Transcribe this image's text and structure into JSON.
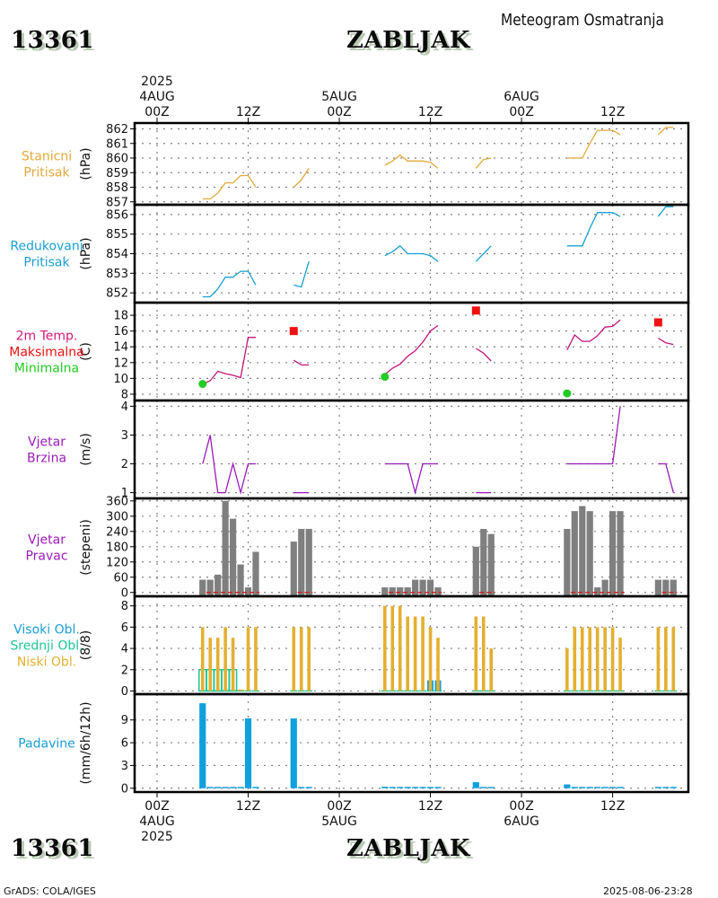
{
  "header": {
    "station_id": "13361",
    "station_name": "ZABLJAK",
    "title": "Meteogram Osmatranja"
  },
  "footer": {
    "station_id": "13361",
    "station_name": "ZABLJAK",
    "credit": "GrADS: COLA/IGES",
    "timestamp": "2025-08-06-23:28"
  },
  "time_axis": {
    "year": "2025",
    "ticks": [
      {
        "hour": 0,
        "time": "00Z",
        "day": "4AUG",
        "year": "2025"
      },
      {
        "hour": 12,
        "time": "12Z",
        "day": "",
        "year": ""
      },
      {
        "hour": 24,
        "time": "00Z",
        "day": "5AUG",
        "year": ""
      },
      {
        "hour": 36,
        "time": "12Z",
        "day": "",
        "year": ""
      },
      {
        "hour": 48,
        "time": "00Z",
        "day": "6AUG",
        "year": ""
      },
      {
        "hour": 60,
        "time": "12Z",
        "day": "",
        "year": ""
      }
    ],
    "range_hours": [
      -3,
      70
    ]
  },
  "colors": {
    "station_pressure": "#e3a93a",
    "reduced_pressure": "#1a9fd6",
    "temperature": "#c4157a",
    "tmax": "#ee1111",
    "tmin": "#22cc22",
    "wind_speed": "#9a1ab8",
    "wind_dir_bar": "#7f7f7f",
    "wind_dir_zero": "#dd1111",
    "cloud_high": "#1a9fd6",
    "cloud_mid": "#1fc49a",
    "cloud_low": "#e3b030",
    "precip": "#10a0e0",
    "label_station_pressure": "#e3a93a",
    "label_reduced_pressure": "#1a9fd6",
    "label_temp": "#d01a7a",
    "label_tmax": "#ee1111",
    "label_tmin": "#22cc22",
    "label_wind": "#9a1ab8",
    "label_precip": "#1a9fd6",
    "grid": "#808080"
  },
  "chart_data": [
    {
      "id": "station_pressure",
      "type": "line",
      "labels": [
        "Stanicni",
        "Pritisak"
      ],
      "ylabel": "(hPa)",
      "ylim": [
        856.8,
        862.4
      ],
      "yticks": [
        857,
        858,
        859,
        860,
        861,
        862
      ],
      "grid": true,
      "segments": [
        [
          [
            6,
            857.2
          ],
          [
            7,
            857.2
          ],
          [
            8,
            857.6
          ],
          [
            9,
            858.3
          ],
          [
            10,
            858.3
          ],
          [
            11,
            858.8
          ],
          [
            12,
            858.8
          ],
          [
            13,
            858.0
          ]
        ],
        [
          [
            18,
            858.0
          ],
          [
            19,
            858.5
          ],
          [
            20,
            859.3
          ]
        ],
        [
          [
            30,
            859.5
          ],
          [
            31,
            859.8
          ],
          [
            32,
            860.2
          ],
          [
            33,
            859.8
          ],
          [
            34,
            859.8
          ],
          [
            35,
            859.8
          ],
          [
            36,
            859.7
          ],
          [
            37,
            859.3
          ]
        ],
        [
          [
            42,
            859.3
          ],
          [
            43,
            859.9
          ],
          [
            44,
            860.0
          ]
        ],
        [
          [
            54,
            860.0
          ],
          [
            55,
            860.0
          ],
          [
            56,
            860.0
          ],
          [
            57,
            861.0
          ],
          [
            58,
            861.9
          ],
          [
            59,
            861.9
          ],
          [
            60,
            861.9
          ],
          [
            61,
            861.6
          ]
        ],
        [
          [
            66,
            861.6
          ],
          [
            67,
            862.1
          ],
          [
            68,
            862.1
          ]
        ]
      ]
    },
    {
      "id": "reduced_pressure",
      "type": "line",
      "labels": [
        "Redukovani",
        "Pritisak"
      ],
      "ylabel": "(hPa)",
      "ylim": [
        851.5,
        856.5
      ],
      "yticks": [
        852,
        853,
        854,
        855,
        856
      ],
      "grid": true,
      "segments": [
        [
          [
            6,
            851.8
          ],
          [
            7,
            851.8
          ],
          [
            8,
            852.2
          ],
          [
            9,
            852.8
          ],
          [
            10,
            852.8
          ],
          [
            11,
            853.1
          ],
          [
            12,
            853.1
          ],
          [
            13,
            852.4
          ]
        ],
        [
          [
            18,
            852.4
          ],
          [
            19,
            852.3
          ],
          [
            20,
            853.6
          ]
        ],
        [
          [
            30,
            853.9
          ],
          [
            31,
            854.1
          ],
          [
            32,
            854.4
          ],
          [
            33,
            854.0
          ],
          [
            34,
            854.0
          ],
          [
            35,
            854.0
          ],
          [
            36,
            853.9
          ],
          [
            37,
            853.6
          ]
        ],
        [
          [
            42,
            853.6
          ],
          [
            43,
            854.0
          ],
          [
            44,
            854.4
          ]
        ],
        [
          [
            54,
            854.4
          ],
          [
            55,
            854.4
          ],
          [
            56,
            854.4
          ],
          [
            57,
            855.3
          ],
          [
            58,
            856.1
          ],
          [
            59,
            856.1
          ],
          [
            60,
            856.1
          ],
          [
            61,
            855.9
          ]
        ],
        [
          [
            66,
            855.9
          ],
          [
            67,
            856.4
          ],
          [
            68,
            856.4
          ]
        ]
      ]
    },
    {
      "id": "temperature",
      "type": "line",
      "labels": [
        "2m Temp.",
        "Maksimalna",
        "Minimalna"
      ],
      "ylabel": "(C)",
      "ylim": [
        7.2,
        19.6
      ],
      "yticks": [
        8,
        10,
        12,
        14,
        16,
        18
      ],
      "grid": true,
      "segments": [
        [
          [
            6,
            9.3
          ],
          [
            7,
            9.7
          ],
          [
            8,
            10.9
          ],
          [
            9,
            10.6
          ],
          [
            10,
            10.4
          ],
          [
            11,
            10.1
          ],
          [
            12,
            15.2
          ],
          [
            13,
            15.2
          ]
        ],
        [
          [
            18,
            12.3
          ],
          [
            19,
            11.7
          ],
          [
            20,
            11.7
          ]
        ],
        [
          [
            30,
            10.5
          ],
          [
            31,
            11.3
          ],
          [
            32,
            11.8
          ],
          [
            33,
            12.8
          ],
          [
            34,
            13.5
          ],
          [
            35,
            14.6
          ],
          [
            36,
            16.0
          ],
          [
            37,
            16.7
          ]
        ],
        [
          [
            42,
            13.8
          ],
          [
            43,
            13.2
          ],
          [
            44,
            12.2
          ]
        ],
        [
          [
            54,
            13.6
          ],
          [
            55,
            15.5
          ],
          [
            56,
            14.7
          ],
          [
            57,
            14.7
          ],
          [
            58,
            15.4
          ],
          [
            59,
            16.5
          ],
          [
            60,
            16.6
          ],
          [
            61,
            17.4
          ]
        ],
        [
          [
            66,
            15.1
          ],
          [
            67,
            14.5
          ],
          [
            68,
            14.3
          ]
        ]
      ],
      "tmax": [
        [
          18,
          16.0
        ],
        [
          42,
          18.6
        ],
        [
          66,
          17.1
        ]
      ],
      "tmin": [
        [
          6,
          9.3
        ],
        [
          30,
          10.2
        ],
        [
          54,
          8.1
        ]
      ]
    },
    {
      "id": "wind_speed",
      "type": "line",
      "labels": [
        "Vjetar",
        "Brzina"
      ],
      "ylabel": "(m/s)",
      "ylim": [
        0.8,
        4.2
      ],
      "yticks": [
        1,
        2,
        3,
        4
      ],
      "grid": true,
      "segments": [
        [
          [
            6,
            2
          ],
          [
            7,
            3
          ],
          [
            8,
            1
          ],
          [
            9,
            1
          ],
          [
            10,
            2
          ],
          [
            11,
            1
          ],
          [
            12,
            2
          ],
          [
            13,
            2
          ]
        ],
        [
          [
            18,
            1
          ],
          [
            19,
            1
          ],
          [
            20,
            1
          ]
        ],
        [
          [
            30,
            2
          ],
          [
            31,
            2
          ],
          [
            32,
            2
          ],
          [
            33,
            2
          ],
          [
            34,
            1
          ],
          [
            35,
            2
          ],
          [
            36,
            2
          ],
          [
            37,
            2
          ]
        ],
        [
          [
            42,
            1
          ],
          [
            43,
            1
          ],
          [
            44,
            1
          ]
        ],
        [
          [
            54,
            2
          ],
          [
            55,
            2
          ],
          [
            56,
            2
          ],
          [
            57,
            2
          ],
          [
            58,
            2
          ],
          [
            59,
            2
          ],
          [
            60,
            2
          ],
          [
            61,
            4
          ]
        ],
        [
          [
            66,
            2
          ],
          [
            67,
            2
          ],
          [
            68,
            1
          ]
        ]
      ]
    },
    {
      "id": "wind_direction",
      "type": "bar",
      "labels": [
        "Vjetar",
        "Pravac"
      ],
      "ylabel": "(stepeni)",
      "ylim": [
        -15,
        370
      ],
      "yticks": [
        0,
        60,
        120,
        180,
        240,
        300,
        360
      ],
      "grid": true,
      "bars": [
        [
          6,
          50
        ],
        [
          7,
          50
        ],
        [
          8,
          70
        ],
        [
          9,
          360
        ],
        [
          10,
          290
        ],
        [
          11,
          110
        ],
        [
          12,
          20
        ],
        [
          13,
          160
        ],
        [
          18,
          200
        ],
        [
          19,
          250
        ],
        [
          20,
          250
        ],
        [
          30,
          20
        ],
        [
          31,
          20
        ],
        [
          32,
          20
        ],
        [
          33,
          20
        ],
        [
          34,
          50
        ],
        [
          35,
          50
        ],
        [
          36,
          50
        ],
        [
          37,
          20
        ],
        [
          42,
          180
        ],
        [
          43,
          250
        ],
        [
          44,
          230
        ],
        [
          54,
          250
        ],
        [
          55,
          320
        ],
        [
          56,
          340
        ],
        [
          57,
          320
        ],
        [
          58,
          20
        ],
        [
          59,
          50
        ],
        [
          60,
          320
        ],
        [
          61,
          320
        ],
        [
          66,
          50
        ],
        [
          67,
          50
        ],
        [
          68,
          50
        ]
      ],
      "calm_segments": [
        [
          6.5,
          13.5
        ],
        [
          18.5,
          20.5
        ],
        [
          30.5,
          37.5
        ],
        [
          42.5,
          44.5
        ],
        [
          54.5,
          61.5
        ],
        [
          66.5,
          68.5
        ]
      ]
    },
    {
      "id": "cloud_cover",
      "type": "bar",
      "labels": [
        "Visoki Obl.",
        "Srednji Obl.",
        "Niski Obl."
      ],
      "ylabel": "(8/8)",
      "ylim": [
        -0.3,
        8.9
      ],
      "yticks": [
        0,
        2,
        4,
        6,
        8
      ],
      "grid": true,
      "low": [
        [
          6,
          6
        ],
        [
          7,
          5
        ],
        [
          8,
          5
        ],
        [
          9,
          6
        ],
        [
          10,
          5
        ],
        [
          11,
          0
        ],
        [
          12,
          6
        ],
        [
          13,
          6
        ],
        [
          18,
          6
        ],
        [
          19,
          6
        ],
        [
          20,
          6
        ],
        [
          30,
          8
        ],
        [
          31,
          8
        ],
        [
          32,
          8
        ],
        [
          33,
          7
        ],
        [
          34,
          7
        ],
        [
          35,
          7
        ],
        [
          36,
          6
        ],
        [
          37,
          5
        ],
        [
          42,
          7
        ],
        [
          43,
          7
        ],
        [
          44,
          4
        ],
        [
          54,
          4
        ],
        [
          55,
          6
        ],
        [
          56,
          6
        ],
        [
          57,
          6
        ],
        [
          58,
          6
        ],
        [
          59,
          6
        ],
        [
          60,
          6
        ],
        [
          61,
          5
        ],
        [
          66,
          6
        ],
        [
          67,
          6
        ],
        [
          68,
          6
        ]
      ],
      "mid": [
        [
          6,
          2
        ],
        [
          7,
          2
        ],
        [
          8,
          2
        ],
        [
          9,
          2
        ],
        [
          10,
          2
        ]
      ],
      "high": [
        [
          36,
          1
        ],
        [
          37,
          1
        ]
      ]
    },
    {
      "id": "precipitation",
      "type": "bar",
      "labels": [
        "Padavine"
      ],
      "ylabel": "(mm/6h/12h)",
      "ylim": [
        -0.5,
        12.4
      ],
      "yticks": [
        0,
        3,
        6,
        9
      ],
      "grid": true,
      "bars": [
        [
          6,
          11.2
        ],
        [
          7,
          0.1
        ],
        [
          8,
          0.1
        ],
        [
          9,
          0.1
        ],
        [
          10,
          0.1
        ],
        [
          11,
          0.1
        ],
        [
          12,
          9.2
        ],
        [
          13,
          0.1
        ],
        [
          18,
          9.2
        ],
        [
          19,
          0.1
        ],
        [
          20,
          0.1
        ],
        [
          30,
          0.2
        ],
        [
          31,
          0.1
        ],
        [
          32,
          0.1
        ],
        [
          33,
          0.1
        ],
        [
          34,
          0.1
        ],
        [
          35,
          0.1
        ],
        [
          36,
          0.1
        ],
        [
          37,
          0.1
        ],
        [
          42,
          0.8
        ],
        [
          43,
          0.1
        ],
        [
          44,
          0.1
        ],
        [
          54,
          0.5
        ],
        [
          55,
          0.1
        ],
        [
          56,
          0.1
        ],
        [
          57,
          0.1
        ],
        [
          58,
          0.1
        ],
        [
          59,
          0.1
        ],
        [
          60,
          0.1
        ],
        [
          61,
          0.1
        ],
        [
          66,
          0.1
        ],
        [
          67,
          0.1
        ],
        [
          68,
          0.1
        ]
      ]
    }
  ]
}
